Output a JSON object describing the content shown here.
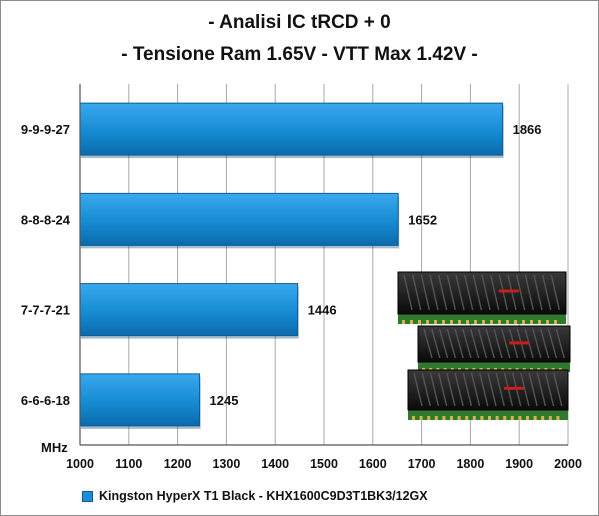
{
  "chart_data": {
    "type": "bar",
    "orientation": "horizontal",
    "title": "- Analisi IC  tRCD + 0",
    "subtitle": "- Tensione Ram 1.65V -  VTT Max 1.42V -",
    "categories": [
      "9-9-9-27",
      "8-8-8-24",
      "7-7-7-21",
      "6-6-6-18"
    ],
    "series": [
      {
        "name": "Kingston HyperX T1 Black - KHX1600C9D3T1BK3/12GX",
        "values": [
          1866,
          1652,
          1446,
          1245
        ],
        "color": "#1a8fd6"
      }
    ],
    "xlabel": "MHz",
    "xlim": [
      1000,
      2000
    ],
    "xticks": [
      1000,
      1100,
      1200,
      1300,
      1400,
      1500,
      1600,
      1700,
      1800,
      1900,
      2000
    ],
    "grid": true,
    "legend_position": "bottom"
  }
}
